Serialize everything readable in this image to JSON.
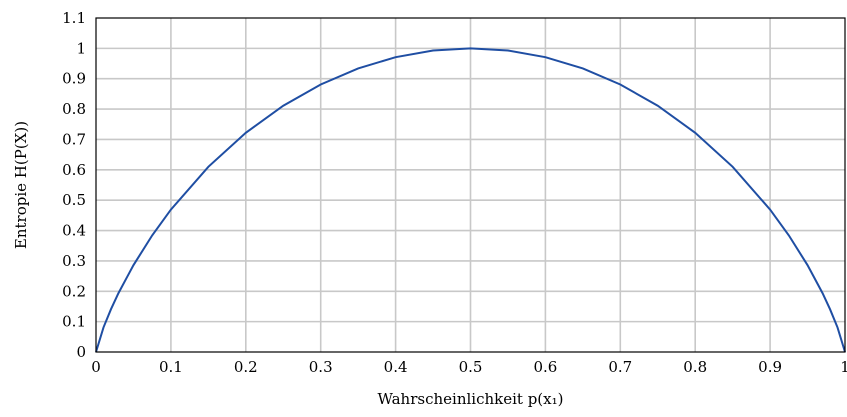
{
  "chart_data": {
    "type": "line",
    "title": "",
    "xlabel": "Wahrscheinlichkeit p(x₁)",
    "ylabel": "Entropie H(P(X))",
    "xlim": [
      0,
      1
    ],
    "ylim": [
      0,
      1.1
    ],
    "grid": true,
    "x_ticks": [
      0,
      0.1,
      0.2,
      0.3,
      0.4,
      0.5,
      0.6,
      0.7,
      0.8,
      0.9,
      1
    ],
    "y_ticks": [
      0,
      0.1,
      0.2,
      0.3,
      0.4,
      0.5,
      0.6,
      0.7,
      0.8,
      0.9,
      1,
      1.1
    ],
    "x_tick_labels": [
      "0",
      "0.1",
      "0.2",
      "0.3",
      "0.4",
      "0.5",
      "0.6",
      "0.7",
      "0.8",
      "0.9",
      "1"
    ],
    "y_tick_labels": [
      "0",
      "0.1",
      "0.2",
      "0.3",
      "0.4",
      "0.5",
      "0.6",
      "0.7",
      "0.8",
      "0.9",
      "1",
      "1.1"
    ],
    "series": [
      {
        "color": "#1f4ea3",
        "x": [
          0,
          0.01,
          0.02,
          0.03,
          0.05,
          0.075,
          0.1,
          0.15,
          0.2,
          0.25,
          0.3,
          0.35,
          0.4,
          0.45,
          0.5,
          0.55,
          0.6,
          0.65,
          0.7,
          0.75,
          0.8,
          0.85,
          0.9,
          0.925,
          0.95,
          0.97,
          0.98,
          0.99,
          1
        ],
        "y": [
          0,
          0.081,
          0.141,
          0.194,
          0.286,
          0.384,
          0.469,
          0.61,
          0.722,
          0.811,
          0.881,
          0.934,
          0.971,
          0.993,
          1,
          0.993,
          0.971,
          0.934,
          0.881,
          0.811,
          0.722,
          0.61,
          0.469,
          0.384,
          0.286,
          0.194,
          0.141,
          0.081,
          0
        ]
      }
    ]
  }
}
